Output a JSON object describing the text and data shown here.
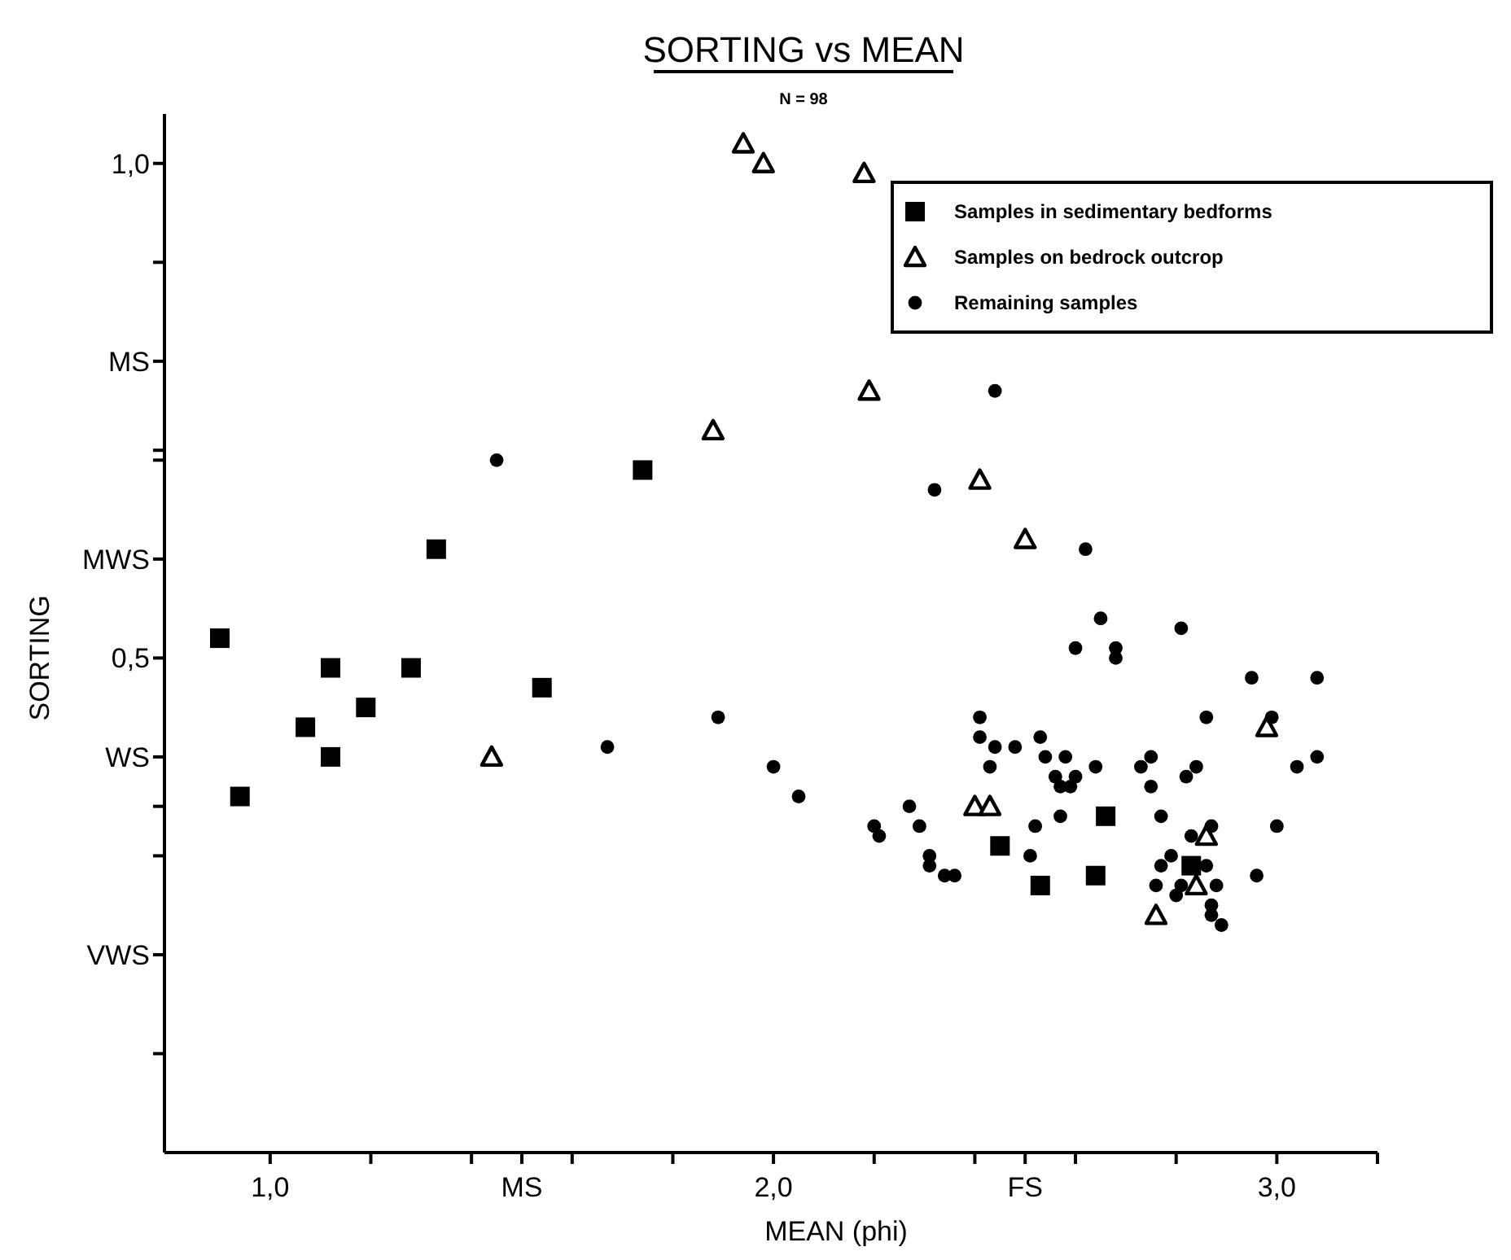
{
  "chart_data": {
    "type": "scatter",
    "title": "SORTING vs MEAN",
    "subtitle": "N = 98",
    "xlabel": "MEAN (phi)",
    "ylabel": "SORTING",
    "xlim": [
      0.79,
      3.2
    ],
    "ylim": [
      0,
      1.05
    ],
    "xticks": [
      {
        "value": 1.0,
        "label": "1,0"
      },
      {
        "value": 1.2,
        "label": null
      },
      {
        "value": 1.4,
        "label": null
      },
      {
        "value": 1.5,
        "label": "MS"
      },
      {
        "value": 1.6,
        "label": null
      },
      {
        "value": 1.8,
        "label": null
      },
      {
        "value": 2.0,
        "label": "2,0"
      },
      {
        "value": 2.2,
        "label": null
      },
      {
        "value": 2.4,
        "label": null
      },
      {
        "value": 2.5,
        "label": "FS"
      },
      {
        "value": 2.6,
        "label": null
      },
      {
        "value": 2.8,
        "label": null
      },
      {
        "value": 3.0,
        "label": "3,0"
      },
      {
        "value": 3.2,
        "label": null
      }
    ],
    "yticks": [
      {
        "value": 0.1,
        "label": null
      },
      {
        "value": 0.2,
        "label": "VWS"
      },
      {
        "value": 0.3,
        "label": null
      },
      {
        "value": 0.35,
        "label": null
      },
      {
        "value": 0.4,
        "label": "WS"
      },
      {
        "value": 0.5,
        "label": "0,5"
      },
      {
        "value": 0.6,
        "label": "MWS"
      },
      {
        "value": 0.7,
        "label": null
      },
      {
        "value": 0.71,
        "label": null
      },
      {
        "value": 0.8,
        "label": "MS"
      },
      {
        "value": 0.9,
        "label": null
      },
      {
        "value": 1.0,
        "label": "1,0"
      }
    ],
    "legend": "top right",
    "grid": false,
    "series": [
      {
        "name": "Samples in sedimentary bedforms",
        "color": "#000000",
        "marker": "square",
        "x": [
          0.9,
          0.94,
          1.07,
          1.12,
          1.12,
          1.19,
          1.28,
          1.33,
          1.54,
          1.74,
          2.45,
          2.53,
          2.64,
          2.66,
          2.83
        ],
        "values": [
          0.52,
          0.36,
          0.43,
          0.49,
          0.4,
          0.45,
          0.49,
          0.61,
          0.47,
          0.69,
          0.31,
          0.27,
          0.28,
          0.34,
          0.29
        ]
      },
      {
        "name": "Samples on bedrock outcrop",
        "color": "#000000",
        "marker": "triangle",
        "x": [
          1.94,
          1.98,
          2.18,
          2.19,
          1.88,
          2.41,
          2.5,
          1.44,
          2.4,
          2.43,
          2.98,
          2.76,
          2.86,
          2.84
        ],
        "values": [
          1.02,
          1.0,
          0.99,
          0.77,
          0.73,
          0.68,
          0.62,
          0.4,
          0.35,
          0.35,
          0.43,
          0.24,
          0.32,
          0.27
        ]
      },
      {
        "name": "Remaining samples",
        "color": "#000000",
        "marker": "circle",
        "x": [
          1.45,
          2.44,
          2.32,
          1.67,
          1.89,
          2.0,
          2.05,
          2.2,
          2.21,
          2.62,
          2.65,
          2.6,
          2.68,
          2.68,
          2.81,
          2.95,
          3.08,
          2.41,
          2.41,
          2.44,
          2.48,
          2.43,
          2.53,
          2.54,
          2.58,
          2.56,
          2.6,
          2.57,
          2.59,
          2.64,
          2.73,
          2.75,
          2.75,
          2.86,
          2.99,
          2.84,
          2.82,
          3.04,
          3.08,
          2.27,
          2.29,
          2.31,
          2.31,
          2.34,
          2.36,
          2.52,
          2.57,
          2.51,
          2.77,
          3.0,
          2.83,
          2.87,
          2.77,
          2.79,
          2.86,
          2.76,
          2.81,
          2.8,
          2.88,
          2.96,
          2.87,
          2.87,
          2.89
        ],
        "values": [
          0.7,
          0.77,
          0.67,
          0.41,
          0.44,
          0.39,
          0.36,
          0.33,
          0.32,
          0.61,
          0.54,
          0.51,
          0.51,
          0.5,
          0.53,
          0.48,
          0.48,
          0.44,
          0.42,
          0.41,
          0.41,
          0.39,
          0.42,
          0.4,
          0.4,
          0.38,
          0.38,
          0.37,
          0.37,
          0.39,
          0.39,
          0.4,
          0.37,
          0.44,
          0.44,
          0.39,
          0.38,
          0.39,
          0.4,
          0.35,
          0.33,
          0.3,
          0.29,
          0.28,
          0.28,
          0.33,
          0.34,
          0.3,
          0.34,
          0.33,
          0.32,
          0.33,
          0.29,
          0.3,
          0.29,
          0.27,
          0.27,
          0.26,
          0.27,
          0.28,
          0.25,
          0.24,
          0.23
        ]
      }
    ]
  }
}
